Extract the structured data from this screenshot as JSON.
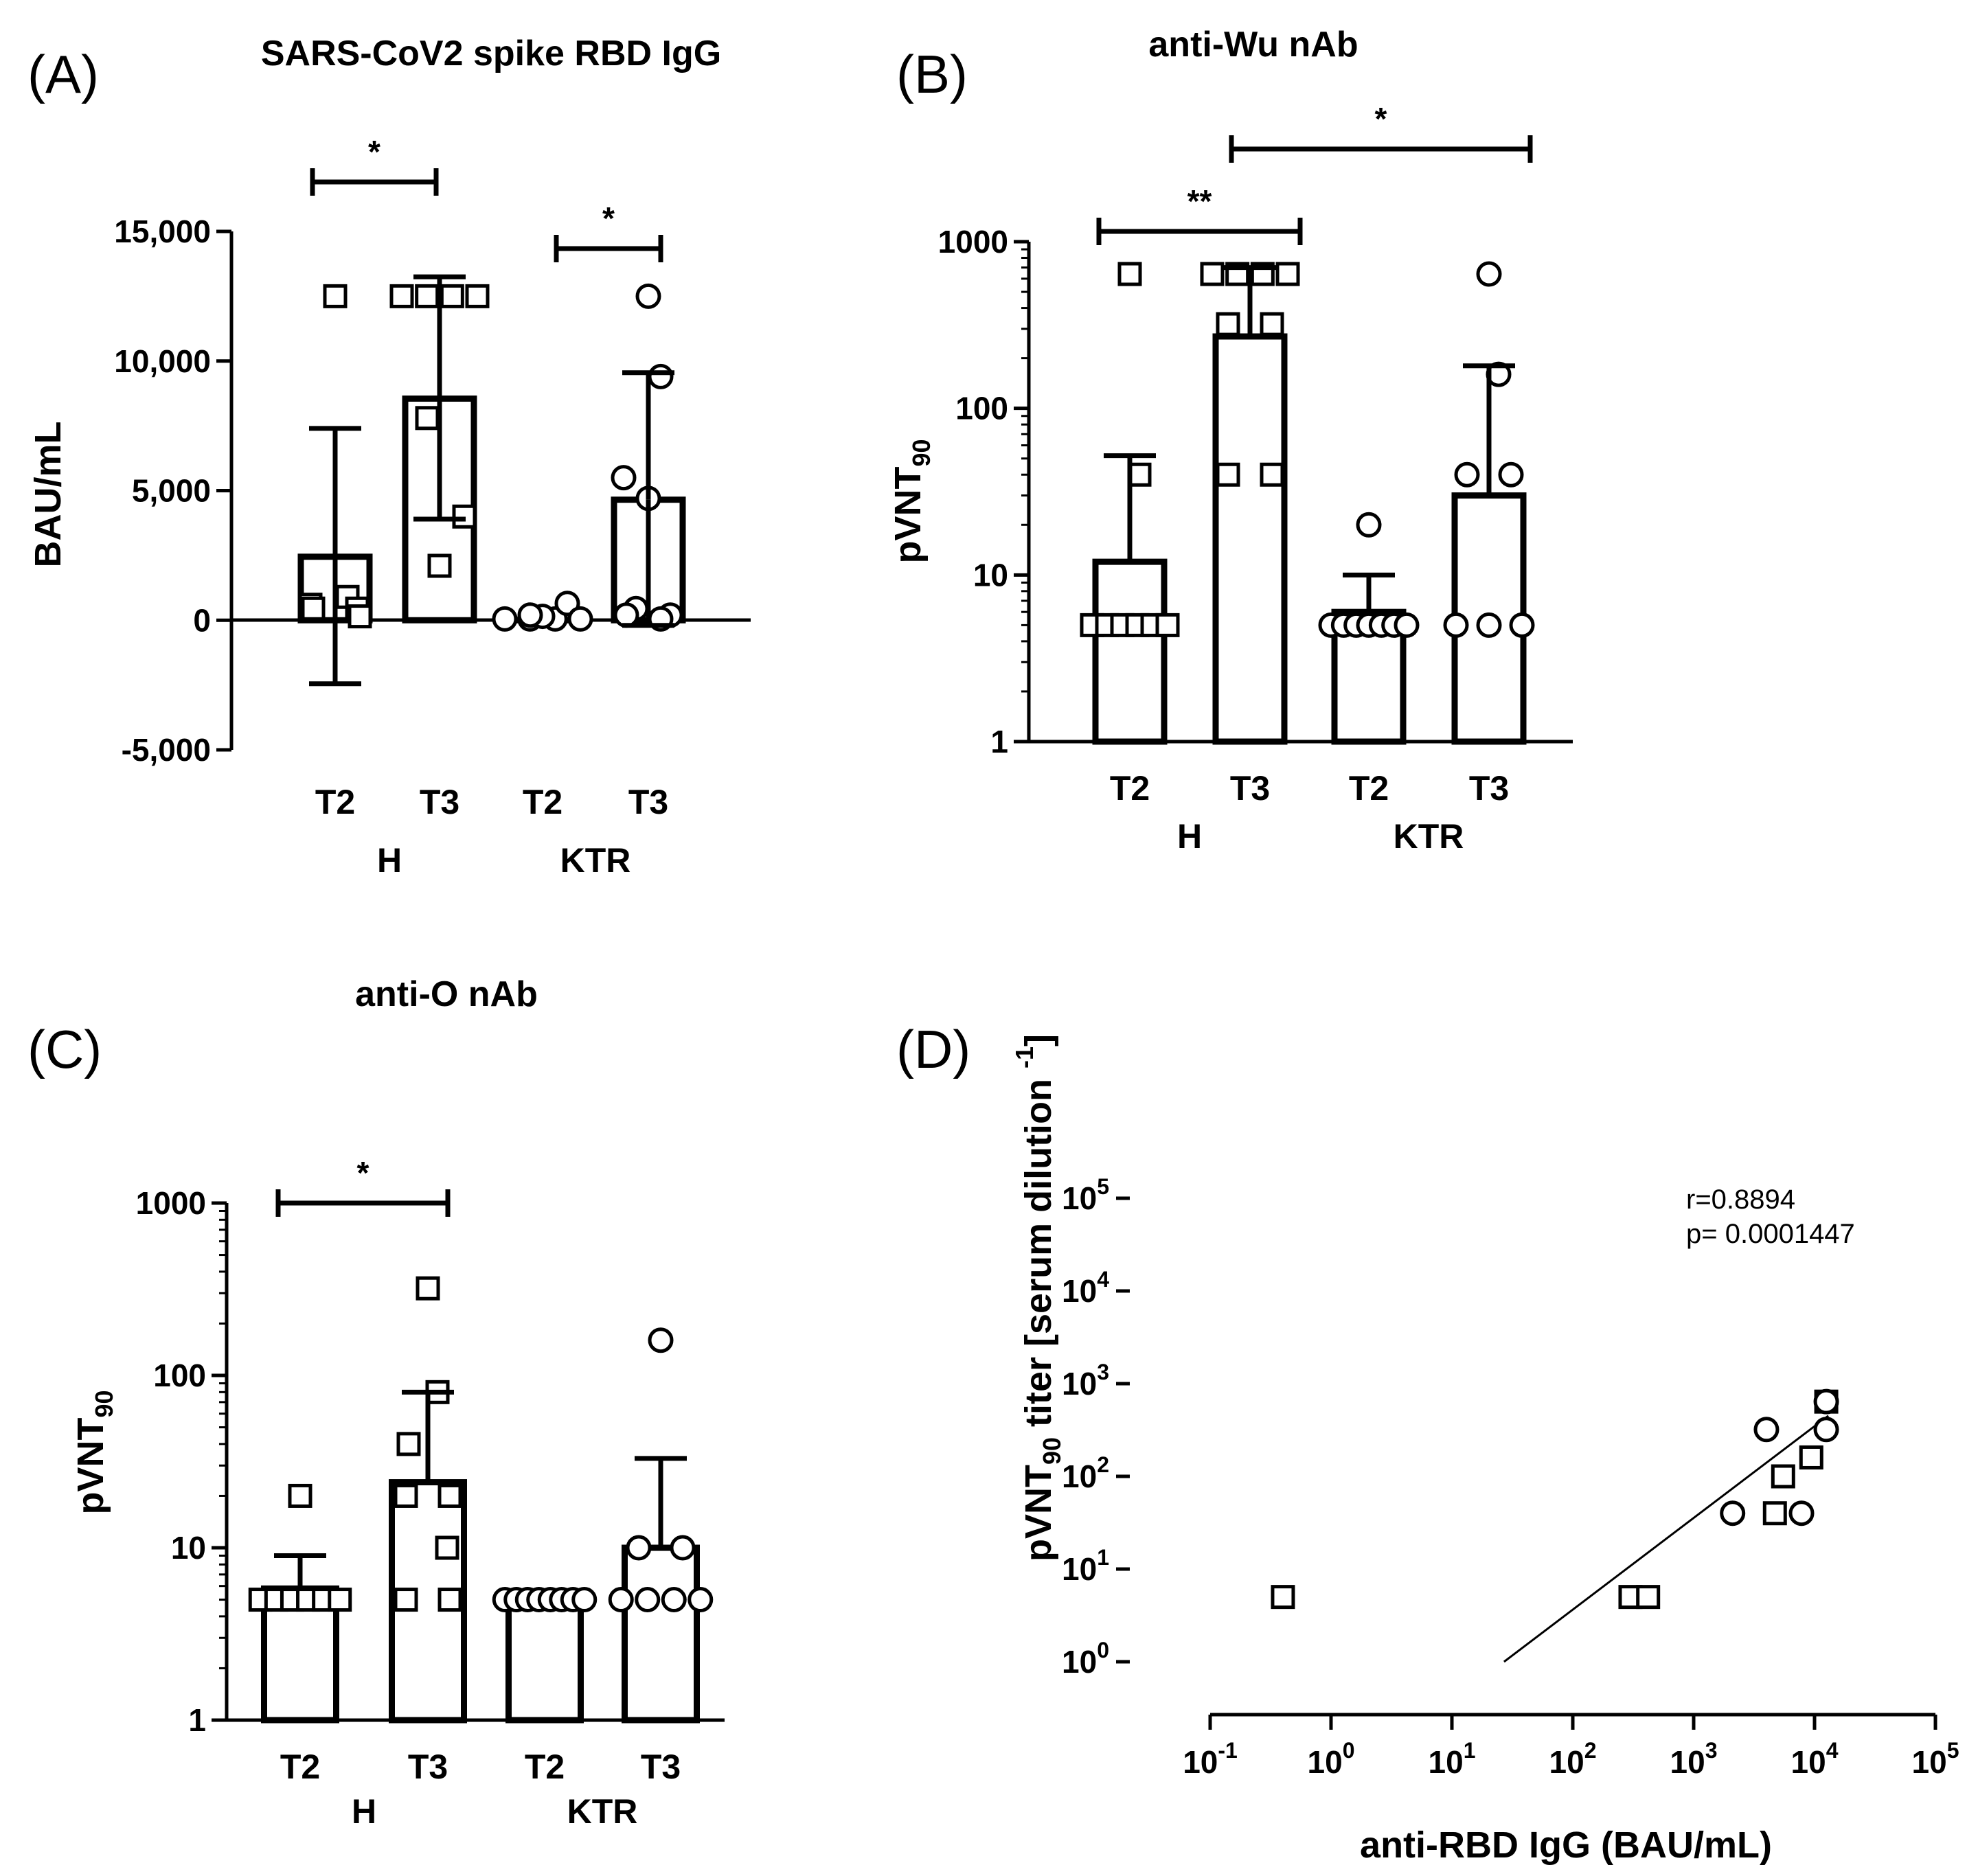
{
  "chart_data": [
    {
      "panel": "(A)",
      "type": "bar",
      "title": "SARS-CoV2 spike RBD IgG",
      "ylabel": "BAU/mL",
      "yscale": "linear",
      "ylim": [
        -5000,
        15000
      ],
      "yticks": [
        -5000,
        0,
        5000,
        10000,
        15000
      ],
      "ytick_labels": [
        "-5,000",
        "0",
        "5,000",
        "10,000",
        "15,000"
      ],
      "categories": [
        "T2",
        "T3",
        "T2",
        "T3"
      ],
      "groups": [
        {
          "label": "H",
          "of": [
            0,
            1
          ]
        },
        {
          "label": "KTR",
          "of": [
            2,
            3
          ]
        }
      ],
      "markers": [
        "square",
        "square",
        "circle",
        "circle"
      ],
      "values": [
        2450,
        8550,
        0,
        4650
      ],
      "error_low": [
        -2450,
        3900,
        0,
        -200
      ],
      "error_high": [
        7400,
        13250,
        0,
        9550
      ],
      "points": [
        [
          12500,
          900,
          600,
          450,
          450,
          150
        ],
        [
          12500,
          12500,
          12500,
          12500,
          7800,
          4000,
          2100
        ],
        [
          50,
          50,
          50,
          150,
          200,
          650,
          50
        ],
        [
          12500,
          9400,
          5500,
          4700,
          450,
          200,
          200,
          50
        ]
      ],
      "significance": [
        {
          "from": 0,
          "to": 1,
          "label": "*"
        },
        {
          "from": 2,
          "to": 3,
          "label": "*"
        }
      ]
    },
    {
      "panel": "(B)",
      "type": "bar",
      "title": "anti-Wu nAb",
      "ylabel": "pVNT",
      "ylabel_sub": "90",
      "yscale": "log",
      "ylim": [
        1,
        1000
      ],
      "yticks": [
        1,
        10,
        100,
        1000
      ],
      "ytick_labels": [
        "1",
        "10",
        "100",
        "1000"
      ],
      "categories": [
        "T2",
        "T3",
        "T2",
        "T3"
      ],
      "groups": [
        {
          "label": "H",
          "of": [
            0,
            1
          ]
        },
        {
          "label": "KTR",
          "of": [
            2,
            3
          ]
        }
      ],
      "markers": [
        "square",
        "square",
        "circle",
        "circle"
      ],
      "values": [
        12,
        270,
        6,
        30
      ],
      "error_low": [
        null,
        null,
        null,
        null
      ],
      "error_high": [
        52,
        700,
        10,
        180
      ],
      "points": [
        [
          640,
          40,
          5,
          5,
          5,
          5,
          5,
          5
        ],
        [
          640,
          640,
          640,
          640,
          320,
          320,
          40,
          40
        ],
        [
          20,
          5,
          5,
          5,
          5,
          5,
          5,
          5
        ],
        [
          640,
          160,
          40,
          40,
          5,
          5,
          5
        ]
      ],
      "significance": [
        {
          "from": 0,
          "to": 1,
          "label": "**"
        },
        {
          "from": 1.15,
          "to": 3.35,
          "label": "*"
        }
      ]
    },
    {
      "panel": "(C)",
      "type": "bar",
      "title": "anti-O nAb",
      "ylabel": "pVNT",
      "ylabel_sub": "90",
      "yscale": "log",
      "ylim": [
        1,
        1000
      ],
      "yticks": [
        1,
        10,
        100,
        1000
      ],
      "ytick_labels": [
        "1",
        "10",
        "100",
        "1000"
      ],
      "categories": [
        "T2",
        "T3",
        "T2",
        "T3"
      ],
      "groups": [
        {
          "label": "H",
          "of": [
            0,
            1
          ]
        },
        {
          "label": "KTR",
          "of": [
            2,
            3
          ]
        }
      ],
      "markers": [
        "square",
        "square",
        "circle",
        "circle"
      ],
      "values": [
        5.8,
        24,
        5,
        10
      ],
      "error_low": [
        null,
        null,
        null,
        null
      ],
      "error_high": [
        9,
        80,
        5,
        33
      ],
      "points": [
        [
          20,
          5,
          5,
          5,
          5,
          5,
          5
        ],
        [
          320,
          80,
          40,
          20,
          20,
          10,
          5,
          5
        ],
        [
          5,
          5,
          5,
          5,
          5,
          5,
          5,
          5
        ],
        [
          160,
          10,
          10,
          5,
          5,
          5,
          5
        ]
      ],
      "significance": [
        {
          "from": 0,
          "to": 1,
          "label": "*"
        }
      ]
    },
    {
      "panel": "(D)",
      "type": "scatter",
      "xlabel": "anti-RBD IgG (BAU/mL)",
      "ylabel": "pVNT",
      "ylabel_sub": "90",
      "ylabel_rest": " titer [serum dilution ",
      "ylabel_sup": "-1",
      "ylabel_end": "]",
      "xscale": "log",
      "yscale": "log",
      "xlim": [
        0.1,
        100000
      ],
      "ylim": [
        1,
        100000
      ],
      "xtick_exponents": [
        "-1",
        "0",
        "1",
        "2",
        "3",
        "4",
        "5"
      ],
      "ytick_exponents": [
        "0",
        "1",
        "2",
        "3",
        "4",
        "5"
      ],
      "tick_base": "10",
      "annotation_r": "r=0.8894",
      "annotation_p": "p= 0.0001447",
      "fit_line": {
        "x": [
          27,
          13000
        ],
        "y": [
          1,
          450
        ]
      },
      "points": [
        {
          "x": 0.4,
          "y": 5,
          "marker": "square"
        },
        {
          "x": 300,
          "y": 5,
          "marker": "square"
        },
        {
          "x": 420,
          "y": 5,
          "marker": "square"
        },
        {
          "x": 2100,
          "y": 40,
          "marker": "circle"
        },
        {
          "x": 4000,
          "y": 320,
          "marker": "circle"
        },
        {
          "x": 4700,
          "y": 40,
          "marker": "square"
        },
        {
          "x": 5500,
          "y": 100,
          "marker": "square"
        },
        {
          "x": 7800,
          "y": 40,
          "marker": "circle"
        },
        {
          "x": 9400,
          "y": 160,
          "marker": "square"
        },
        {
          "x": 12500,
          "y": 640,
          "marker": "square"
        },
        {
          "x": 12500,
          "y": 640,
          "marker": "circle"
        },
        {
          "x": 12500,
          "y": 320,
          "marker": "circle"
        }
      ]
    }
  ]
}
